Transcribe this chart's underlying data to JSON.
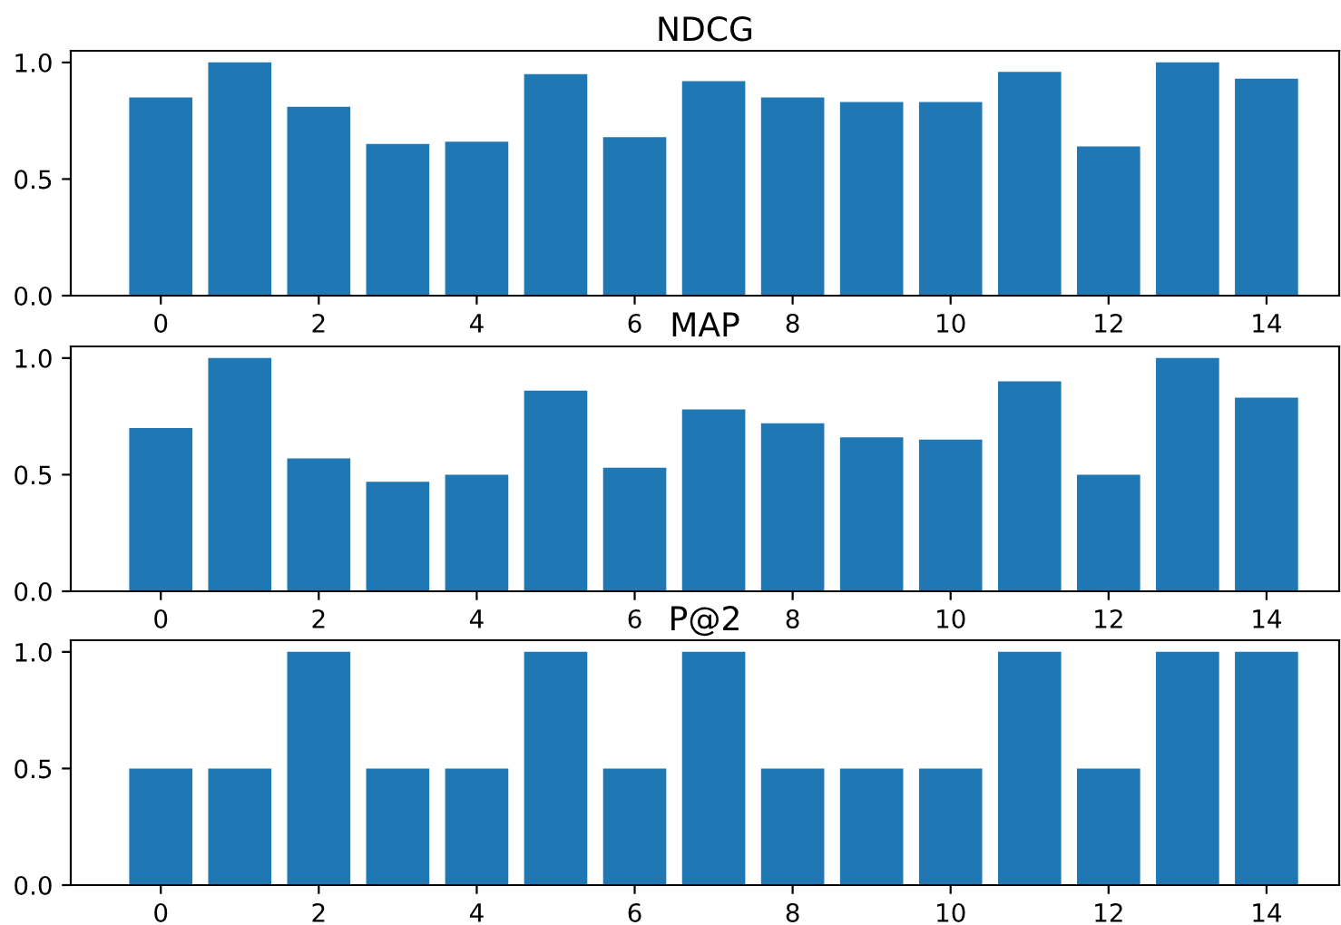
{
  "chart_data": [
    {
      "type": "bar",
      "title": "NDCG",
      "x": [
        0,
        1,
        2,
        3,
        4,
        5,
        6,
        7,
        8,
        9,
        10,
        11,
        12,
        13,
        14
      ],
      "values": [
        0.85,
        1.0,
        0.81,
        0.65,
        0.66,
        0.95,
        0.68,
        0.92,
        0.85,
        0.83,
        0.83,
        0.96,
        0.64,
        1.0,
        0.93
      ],
      "color": "#1f77b4",
      "xlim": [
        -1.14,
        14.92
      ],
      "xticks": [
        0,
        2,
        4,
        6,
        8,
        10,
        12,
        14
      ],
      "ylim": [
        0,
        1.05
      ],
      "yticks": [
        {
          "value": 0,
          "label": "0.0"
        },
        {
          "value": 0.5,
          "label": "0.5"
        },
        {
          "value": 1,
          "label": "1.0"
        }
      ]
    },
    {
      "type": "bar",
      "title": "MAP",
      "x": [
        0,
        1,
        2,
        3,
        4,
        5,
        6,
        7,
        8,
        9,
        10,
        11,
        12,
        13,
        14
      ],
      "values": [
        0.7,
        1.0,
        0.57,
        0.47,
        0.5,
        0.86,
        0.53,
        0.78,
        0.72,
        0.66,
        0.65,
        0.9,
        0.5,
        1.0,
        0.83
      ],
      "color": "#1f77b4",
      "xlim": [
        -1.14,
        14.92
      ],
      "xticks": [
        0,
        2,
        4,
        6,
        8,
        10,
        12,
        14
      ],
      "ylim": [
        0,
        1.05
      ],
      "yticks": [
        {
          "value": 0,
          "label": "0.0"
        },
        {
          "value": 0.5,
          "label": "0.5"
        },
        {
          "value": 1,
          "label": "1.0"
        }
      ]
    },
    {
      "type": "bar",
      "title": "P@2",
      "x": [
        0,
        1,
        2,
        3,
        4,
        5,
        6,
        7,
        8,
        9,
        10,
        11,
        12,
        13,
        14
      ],
      "values": [
        0.5,
        0.5,
        1.0,
        0.5,
        0.5,
        1.0,
        0.5,
        1.0,
        0.5,
        0.5,
        0.5,
        1.0,
        0.5,
        1.0,
        1.0
      ],
      "color": "#1f77b4",
      "xlim": [
        -1.14,
        14.92
      ],
      "xticks": [
        0,
        2,
        4,
        6,
        8,
        10,
        12,
        14
      ],
      "ylim": [
        0,
        1.05
      ],
      "yticks": [
        {
          "value": 0,
          "label": "0.0"
        },
        {
          "value": 0.5,
          "label": "0.5"
        },
        {
          "value": 1,
          "label": "1.0"
        }
      ]
    }
  ]
}
